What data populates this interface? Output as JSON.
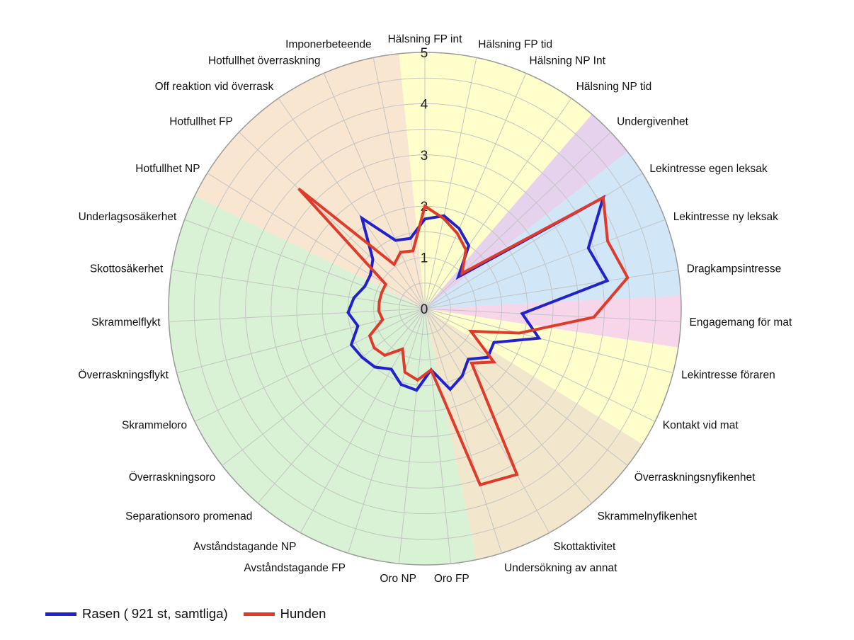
{
  "chart_data": {
    "type": "radar",
    "r_range": [
      0,
      5
    ],
    "r_ticks": [
      "0",
      "1",
      "2",
      "3",
      "4",
      "5"
    ],
    "categories": [
      "Hälsning FP int",
      "Hälsning FP tid",
      "Hälsning NP Int",
      "Hälsning NP tid",
      "Undergivenhet",
      "Lekintresse egen leksak",
      "Lekintresse ny leksak",
      "Dragkampsintresse",
      "Engagemang för mat",
      "Lekintresse föraren",
      "Kontakt vid mat",
      "Överraskningsnyfikenhet",
      "Skrammelnyfikenhet",
      "Skottaktivitet",
      "Undersökning av annat",
      "Oro FP",
      "Oro NP",
      "Avståndstagande FP",
      "Avståndstagande NP",
      "Separationsoro promenad",
      "Överraskningsoro",
      "Skrammeloro",
      "Överraskningsflykt",
      "Skrammelflykt",
      "Skottosäkerhet",
      "Underlagsosäkerhet",
      "Hotfullhet NP",
      "Hotfullhet FP",
      "Off reaktion vid överrask",
      "Hotfullhet överraskning",
      "Imponerbeteende"
    ],
    "series": [
      {
        "name": "Rasen ( 921 st, samtliga)",
        "color": "#2222cc",
        "values": [
          1.75,
          1.85,
          1.7,
          1.5,
          0.9,
          4.1,
          3.4,
          3.6,
          1.9,
          2.3,
          1.5,
          1.55,
          1.3,
          1.5,
          1.65,
          1.2,
          1.6,
          1.55,
          1.35,
          1.5,
          1.55,
          1.6,
          1.35,
          1.5,
          1.4,
          1.25,
          1.25,
          1.4,
          2.15,
          1.45,
          1.4
        ]
      },
      {
        "name": "Hunden",
        "color": "#e03a2a",
        "values": [
          2.0,
          1.8,
          1.6,
          1.4,
          1.0,
          4.1,
          3.8,
          4.0,
          3.3,
          1.9,
          1.0,
          1.7,
          1.4,
          3.7,
          3.6,
          1.2,
          1.4,
          1.3,
          0.9,
          1.2,
          1.25,
          1.2,
          0.85,
          0.9,
          0.9,
          0.9,
          0.9,
          3.4,
          1.05,
          1.2,
          1.15
        ]
      }
    ],
    "background_sectors": [
      {
        "from_index": -0.5,
        "to_index": 3.5,
        "color": "#ffffcc"
      },
      {
        "from_index": 3.5,
        "to_index": 4.5,
        "color": "#e6d2ec"
      },
      {
        "from_index": 4.5,
        "to_index": 7.5,
        "color": "#d1e6f6"
      },
      {
        "from_index": 7.5,
        "to_index": 8.5,
        "color": "#f6d6e8"
      },
      {
        "from_index": 8.5,
        "to_index": 10.5,
        "color": "#ffffcc"
      },
      {
        "from_index": 10.5,
        "to_index": 14.5,
        "color": "#f2e7cc"
      },
      {
        "from_index": 14.5,
        "to_index": 25.5,
        "color": "#d9f1d4"
      },
      {
        "from_index": 25.5,
        "to_index": 30.5,
        "color": "#f8e6d0"
      }
    ],
    "legend_position": "bottom-left",
    "grid": true
  },
  "legend": {
    "items": [
      {
        "label": "Rasen ( 921 st, samtliga)",
        "color": "#2222cc"
      },
      {
        "label": "Hunden",
        "color": "#e03a2a"
      }
    ]
  }
}
